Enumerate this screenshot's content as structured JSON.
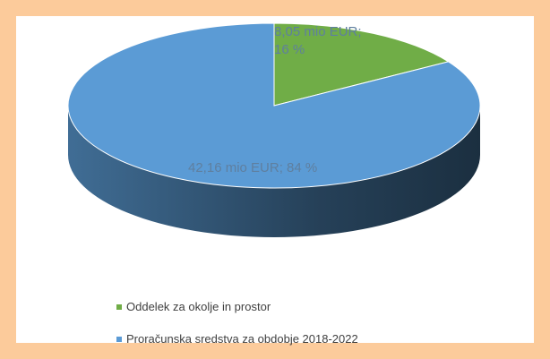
{
  "chart_data": {
    "type": "pie",
    "categories": [
      "Oddelek za okolje in prostor",
      "Proračunska sredstva za obdobje 2018-2022"
    ],
    "values": [
      8.05,
      42.16
    ],
    "value_labels": [
      "8,05 mio EUR; 16 %",
      "42,16 mio EUR; 84 %"
    ],
    "colors": [
      "#70ad47",
      "#5b9bd5"
    ],
    "legend": "bottom"
  }
}
